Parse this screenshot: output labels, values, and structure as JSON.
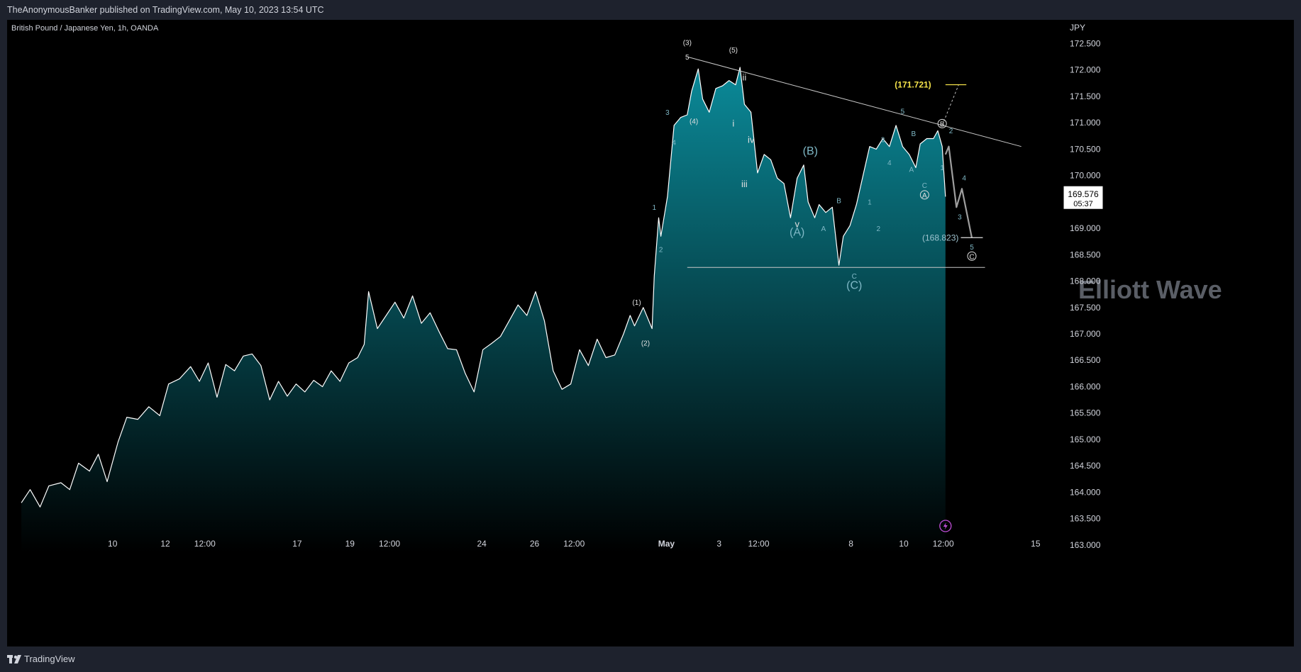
{
  "header": {
    "published_by": "TheAnonymousBanker published on TradingView.com, May 10, 2023 13:54 UTC"
  },
  "footer": {
    "brand": "TradingView"
  },
  "chart_data": {
    "type": "line",
    "title": "British Pound / Japanese Yen, 1h, OANDA",
    "currency": "JPY",
    "watermark": "Elliott Wave",
    "ylim": [
      162.85,
      172.95
    ],
    "y_ticks": [
      163.0,
      163.5,
      164.0,
      164.5,
      165.0,
      165.5,
      166.0,
      166.5,
      167.0,
      167.5,
      168.0,
      168.5,
      169.0,
      169.5,
      170.0,
      170.5,
      171.0,
      171.5,
      172.0,
      172.5
    ],
    "x_ticks": [
      "10",
      "12",
      "12:00",
      "17",
      "19",
      "12:00",
      "24",
      "26",
      "12:00",
      "May",
      "3",
      "12:00",
      "8",
      "10",
      "12:00",
      "15"
    ],
    "x_domain": [
      "2023-04-06",
      "2023-05-16"
    ],
    "x_tick_dates": [
      "2023-04-10",
      "2023-04-12",
      "2023-04-13T12:00",
      "2023-04-17",
      "2023-04-19",
      "2023-04-20T12:00",
      "2023-04-24",
      "2023-04-26",
      "2023-04-27T12:00",
      "2023-05-01",
      "2023-05-03",
      "2023-05-04T12:00",
      "2023-05-08",
      "2023-05-10",
      "2023-05-11T12:00",
      "2023-05-15"
    ],
    "current_price": "169.576",
    "countdown": "05:37",
    "colors": {
      "line": "#ffffff",
      "fill_top": "#0b8a99",
      "fill_bottom": "#000000",
      "projection": "#9e9e9e",
      "target": "#f5e34a",
      "wave_label": "#7fb8c6",
      "alert": "#c04ed8"
    },
    "series": [
      {
        "values": [
          [
            "2023-04-06T13:00",
            163.8
          ],
          [
            "2023-04-06T21:00",
            164.05
          ],
          [
            "2023-04-07T06:00",
            163.72
          ],
          [
            "2023-04-07T14:00",
            164.12
          ],
          [
            "2023-04-08T01:00",
            164.18
          ],
          [
            "2023-04-08T09:00",
            164.05
          ],
          [
            "2023-04-08T17:00",
            164.55
          ],
          [
            "2023-04-09T03:00",
            164.4
          ],
          [
            "2023-04-09T11:00",
            164.72
          ],
          [
            "2023-04-09T19:00",
            164.2
          ],
          [
            "2023-04-10T05:00",
            164.95
          ],
          [
            "2023-04-10T13:00",
            165.42
          ],
          [
            "2023-04-10T23:00",
            165.38
          ],
          [
            "2023-04-11T09:00",
            165.62
          ],
          [
            "2023-04-11T19:00",
            165.45
          ],
          [
            "2023-04-12T03:00",
            166.05
          ],
          [
            "2023-04-12T13:00",
            166.15
          ],
          [
            "2023-04-12T23:00",
            166.38
          ],
          [
            "2023-04-13T07:00",
            166.1
          ],
          [
            "2023-04-13T15:00",
            166.45
          ],
          [
            "2023-04-13T23:00",
            165.8
          ],
          [
            "2023-04-14T07:00",
            166.42
          ],
          [
            "2023-04-14T15:00",
            166.3
          ],
          [
            "2023-04-14T23:00",
            166.58
          ],
          [
            "2023-04-15T07:00",
            166.62
          ],
          [
            "2023-04-15T15:00",
            166.4
          ],
          [
            "2023-04-15T23:00",
            165.75
          ],
          [
            "2023-04-16T07:00",
            166.1
          ],
          [
            "2023-04-16T15:00",
            165.82
          ],
          [
            "2023-04-16T23:00",
            166.05
          ],
          [
            "2023-04-17T07:00",
            165.9
          ],
          [
            "2023-04-17T15:00",
            166.12
          ],
          [
            "2023-04-17T23:00",
            166.0
          ],
          [
            "2023-04-18T07:00",
            166.3
          ],
          [
            "2023-04-18T15:00",
            166.1
          ],
          [
            "2023-04-18T23:00",
            166.45
          ],
          [
            "2023-04-19T07:00",
            166.55
          ],
          [
            "2023-04-19T13:00",
            166.8
          ],
          [
            "2023-04-19T17:00",
            167.8
          ],
          [
            "2023-04-20T01:00",
            167.1
          ],
          [
            "2023-04-20T09:00",
            167.35
          ],
          [
            "2023-04-20T17:00",
            167.6
          ],
          [
            "2023-04-21T01:00",
            167.3
          ],
          [
            "2023-04-21T09:00",
            167.72
          ],
          [
            "2023-04-21T17:00",
            167.2
          ],
          [
            "2023-04-22T01:00",
            167.4
          ],
          [
            "2023-04-22T09:00",
            167.05
          ],
          [
            "2023-04-22T17:00",
            166.72
          ],
          [
            "2023-04-23T01:00",
            166.7
          ],
          [
            "2023-04-23T09:00",
            166.25
          ],
          [
            "2023-04-23T17:00",
            165.9
          ],
          [
            "2023-04-24T01:00",
            166.7
          ],
          [
            "2023-04-24T09:00",
            166.82
          ],
          [
            "2023-04-24T17:00",
            166.95
          ],
          [
            "2023-04-25T01:00",
            167.25
          ],
          [
            "2023-04-25T09:00",
            167.55
          ],
          [
            "2023-04-25T17:00",
            167.35
          ],
          [
            "2023-04-26T01:00",
            167.8
          ],
          [
            "2023-04-26T09:00",
            167.25
          ],
          [
            "2023-04-26T17:00",
            166.3
          ],
          [
            "2023-04-27T01:00",
            165.95
          ],
          [
            "2023-04-27T09:00",
            166.05
          ],
          [
            "2023-04-27T17:00",
            166.7
          ],
          [
            "2023-04-28T01:00",
            166.4
          ],
          [
            "2023-04-28T09:00",
            166.9
          ],
          [
            "2023-04-28T17:00",
            166.55
          ],
          [
            "2023-04-29T01:00",
            166.6
          ],
          [
            "2023-04-29T09:00",
            167.0
          ],
          [
            "2023-04-29T15:00",
            167.35
          ],
          [
            "2023-04-29T19:00",
            167.15
          ],
          [
            "2023-04-30T03:00",
            167.5
          ],
          [
            "2023-04-30T11:00",
            167.1
          ],
          [
            "2023-04-30T13:00",
            168.1
          ],
          [
            "2023-04-30T17:00",
            169.2
          ],
          [
            "2023-04-30T19:00",
            168.85
          ],
          [
            "2023-05-01T01:00",
            169.6
          ],
          [
            "2023-05-01T07:00",
            170.95
          ],
          [
            "2023-05-01T13:00",
            171.1
          ],
          [
            "2023-05-01T19:00",
            171.15
          ],
          [
            "2023-05-01T23:00",
            171.6
          ],
          [
            "2023-05-02T05:00",
            172.02
          ],
          [
            "2023-05-02T09:00",
            171.45
          ],
          [
            "2023-05-02T15:00",
            171.2
          ],
          [
            "2023-05-02T21:00",
            171.65
          ],
          [
            "2023-05-03T03:00",
            171.7
          ],
          [
            "2023-05-03T09:00",
            171.8
          ],
          [
            "2023-05-03T15:00",
            171.72
          ],
          [
            "2023-05-03T19:00",
            172.05
          ],
          [
            "2023-05-03T23:00",
            171.35
          ],
          [
            "2023-05-04T05:00",
            171.2
          ],
          [
            "2023-05-04T11:00",
            170.05
          ],
          [
            "2023-05-04T17:00",
            170.4
          ],
          [
            "2023-05-04T23:00",
            170.3
          ],
          [
            "2023-05-05T05:00",
            169.95
          ],
          [
            "2023-05-05T11:00",
            169.85
          ],
          [
            "2023-05-05T17:00",
            169.2
          ],
          [
            "2023-05-05T23:00",
            169.95
          ],
          [
            "2023-05-06T05:00",
            170.2
          ],
          [
            "2023-05-06T09:00",
            169.5
          ],
          [
            "2023-05-06T15:00",
            169.2
          ],
          [
            "2023-05-06T19:00",
            169.45
          ],
          [
            "2023-05-07T01:00",
            169.3
          ],
          [
            "2023-05-07T07:00",
            169.4
          ],
          [
            "2023-05-07T13:00",
            168.3
          ],
          [
            "2023-05-07T17:00",
            168.85
          ],
          [
            "2023-05-07T23:00",
            169.05
          ],
          [
            "2023-05-08T05:00",
            169.45
          ],
          [
            "2023-05-08T11:00",
            170.0
          ],
          [
            "2023-05-08T17:00",
            170.55
          ],
          [
            "2023-05-08T23:00",
            170.5
          ],
          [
            "2023-05-09T05:00",
            170.7
          ],
          [
            "2023-05-09T11:00",
            170.55
          ],
          [
            "2023-05-09T17:00",
            170.95
          ],
          [
            "2023-05-09T23:00",
            170.55
          ],
          [
            "2023-05-10T05:00",
            170.4
          ],
          [
            "2023-05-10T11:00",
            170.15
          ],
          [
            "2023-05-10T15:00",
            170.6
          ],
          [
            "2023-05-10T21:00",
            170.7
          ],
          [
            "2023-05-11T03:00",
            170.7
          ],
          [
            "2023-05-11T07:00",
            170.85
          ],
          [
            "2023-05-11T11:00",
            170.55
          ],
          [
            "2023-05-11T14:00",
            169.6
          ]
        ]
      }
    ],
    "projection": [
      [
        "2023-05-11T14:00",
        170.4
      ],
      [
        "2023-05-11T17:00",
        170.55
      ],
      [
        "2023-05-12T00:00",
        169.4
      ],
      [
        "2023-05-12T05:00",
        169.75
      ],
      [
        "2023-05-12T14:00",
        168.82
      ]
    ],
    "resistance_line": {
      "from": [
        "2023-05-01T19:00",
        172.25
      ],
      "to": [
        "2023-05-14T11:00",
        170.55
      ]
    },
    "support_line": {
      "price": 168.26,
      "from": "2023-05-01T19:00",
      "to": "2023-05-13T02:00"
    },
    "target_up": {
      "label": "(171.721)",
      "price": 171.721
    },
    "target_down": {
      "label": "(168.823)",
      "price": 168.823
    },
    "wave_labels": [
      {
        "text": "(1)",
        "date": "2023-04-29T21:00",
        "price": 167.55
      },
      {
        "text": "(2)",
        "date": "2023-04-30T05:00",
        "price": 166.78
      },
      {
        "text": "1",
        "date": "2023-04-30T13:00",
        "price": 169.35
      },
      {
        "text": "2",
        "date": "2023-04-30T19:00",
        "price": 168.55
      },
      {
        "text": "3",
        "date": "2023-05-01T01:00",
        "price": 171.15
      },
      {
        "text": "4",
        "date": "2023-05-01T07:00",
        "price": 170.58
      },
      {
        "text": "5",
        "date": "2023-05-01T19:00",
        "price": 172.2
      },
      {
        "text": "(3)",
        "date": "2023-05-01T19:00",
        "price": 172.47
      },
      {
        "text": "(4)",
        "date": "2023-05-02T01:00",
        "price": 170.98
      },
      {
        "text": "(5)",
        "date": "2023-05-03T13:00",
        "price": 172.33
      },
      {
        "text": "ii",
        "date": "2023-05-03T23:00",
        "price": 171.8
      },
      {
        "text": "i",
        "date": "2023-05-03T13:00",
        "price": 170.93
      },
      {
        "text": "iv",
        "date": "2023-05-04T05:00",
        "price": 170.62
      },
      {
        "text": "iii",
        "date": "2023-05-03T23:00",
        "price": 169.78
      },
      {
        "text": "v",
        "date": "2023-05-05T23:00",
        "price": 169.02
      },
      {
        "text": "(A)",
        "date": "2023-05-05T23:00",
        "price": 168.86
      },
      {
        "text": "(B)",
        "date": "2023-05-06T11:00",
        "price": 170.4
      },
      {
        "text": "A",
        "date": "2023-05-06T23:00",
        "price": 168.95
      },
      {
        "text": "B",
        "date": "2023-05-07T13:00",
        "price": 169.48
      },
      {
        "text": "C",
        "date": "2023-05-08T03:00",
        "price": 168.05
      },
      {
        "text": "(C)",
        "date": "2023-05-08T03:00",
        "price": 167.85
      },
      {
        "text": "1",
        "date": "2023-05-08T17:00",
        "price": 169.45
      },
      {
        "text": "2",
        "date": "2023-05-09T01:00",
        "price": 168.95
      },
      {
        "text": "3",
        "date": "2023-05-09T05:00",
        "price": 170.63
      },
      {
        "text": "4",
        "date": "2023-05-09T11:00",
        "price": 170.2
      },
      {
        "text": "5",
        "date": "2023-05-09T23:00",
        "price": 171.17
      },
      {
        "text": "A",
        "date": "2023-05-10T07:00",
        "price": 170.07
      },
      {
        "text": "B",
        "date": "2023-05-10T09:00",
        "price": 170.75
      },
      {
        "text": "C",
        "date": "2023-05-10T19:00",
        "price": 169.77
      },
      {
        "text": "A",
        "date": "2023-05-10T19:00",
        "price": 169.58
      },
      {
        "text": "B",
        "date": "2023-05-11T11:00",
        "price": 170.93
      },
      {
        "text": "1",
        "date": "2023-05-11T11:00",
        "price": 170.1
      },
      {
        "text": "2",
        "date": "2023-05-11T19:00",
        "price": 170.8
      },
      {
        "text": "3",
        "date": "2023-05-12T03:00",
        "price": 169.17
      },
      {
        "text": "4",
        "date": "2023-05-12T07:00",
        "price": 169.91
      },
      {
        "text": "5",
        "date": "2023-05-12T14:00",
        "price": 168.6
      },
      {
        "text": "C",
        "date": "2023-05-12T14:00",
        "price": 168.42
      }
    ]
  }
}
